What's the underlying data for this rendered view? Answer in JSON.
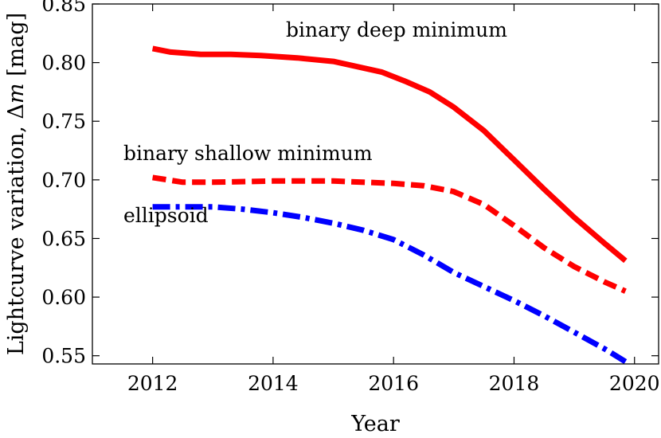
{
  "chart_data": {
    "type": "line",
    "xlabel": "Year",
    "ylabel_prefix": "Lightcurve variation, Δ",
    "ylabel_var": "m",
    "ylabel_suffix": " [mag]",
    "xlim": [
      2011.0,
      2020.4
    ],
    "ylim": [
      0.543,
      0.85
    ],
    "xticks": [
      2012,
      2014,
      2016,
      2018,
      2020
    ],
    "yticks": [
      0.55,
      0.6,
      0.65,
      0.7,
      0.75,
      0.8,
      0.85
    ],
    "ytick_labels": [
      "0.55",
      "0.60",
      "0.65",
      "0.70",
      "0.75",
      "0.80",
      "0.85"
    ],
    "grid": false,
    "series": [
      {
        "name": "binary deep minimum",
        "color": "#ff0000",
        "dash": "solid",
        "x": [
          2012.0,
          2012.3,
          2012.8,
          2013.3,
          2013.8,
          2014.4,
          2015.0,
          2015.8,
          2016.2,
          2016.6,
          2017.0,
          2017.5,
          2018.0,
          2018.5,
          2019.0,
          2019.5,
          2019.85
        ],
        "y": [
          0.812,
          0.809,
          0.807,
          0.807,
          0.806,
          0.804,
          0.801,
          0.792,
          0.784,
          0.775,
          0.762,
          0.742,
          0.717,
          0.692,
          0.668,
          0.646,
          0.631
        ]
      },
      {
        "name": "binary shallow minimum",
        "color": "#ff0000",
        "dash": "dashed",
        "x": [
          2012.0,
          2012.5,
          2013.0,
          2014.0,
          2015.0,
          2016.0,
          2016.5,
          2017.0,
          2017.5,
          2018.0,
          2018.5,
          2019.0,
          2019.5,
          2019.85
        ],
        "y": [
          0.702,
          0.698,
          0.698,
          0.699,
          0.699,
          0.697,
          0.695,
          0.69,
          0.679,
          0.661,
          0.642,
          0.626,
          0.613,
          0.605
        ]
      },
      {
        "name": "ellipsoid",
        "color": "#0000ff",
        "dash": "dashdot",
        "x": [
          2012.0,
          2012.5,
          2013.0,
          2013.5,
          2014.0,
          2014.5,
          2015.0,
          2015.5,
          2016.0,
          2016.5,
          2017.0,
          2017.5,
          2018.0,
          2018.5,
          2019.0,
          2019.5,
          2019.85
        ],
        "y": [
          0.677,
          0.677,
          0.677,
          0.675,
          0.672,
          0.668,
          0.663,
          0.657,
          0.649,
          0.636,
          0.621,
          0.609,
          0.597,
          0.584,
          0.57,
          0.556,
          0.545
        ]
      }
    ],
    "annotations": [
      {
        "text": "binary deep minimum",
        "x": 2016.05,
        "y": 0.822,
        "anchor": "middle"
      },
      {
        "text": "binary shallow minimum",
        "x": 2011.0,
        "y": 0.717,
        "anchor": "start"
      },
      {
        "text": "ellipsoid",
        "x": 2011.0,
        "y": 0.664,
        "anchor": "start"
      }
    ]
  }
}
